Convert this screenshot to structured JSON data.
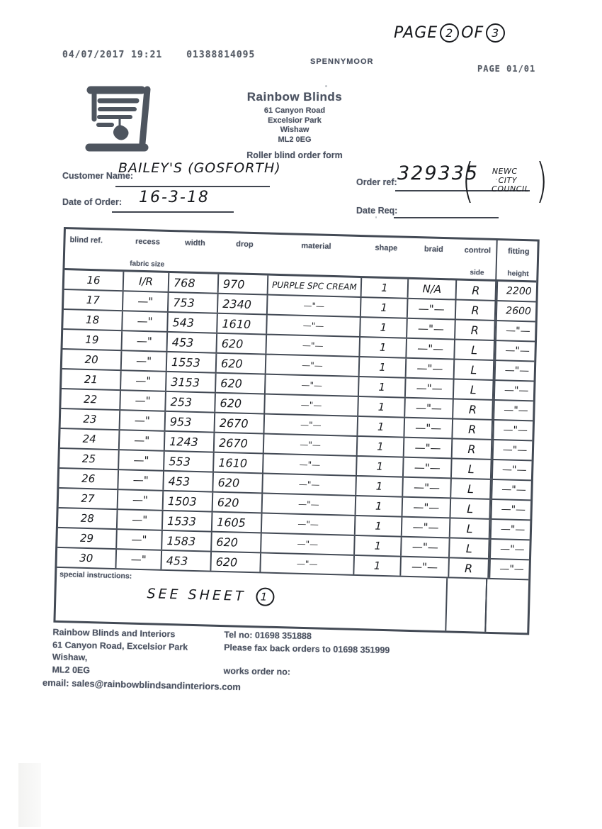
{
  "fax_header": {
    "datetime": "04/07/2017  19:21",
    "fax_number": "01388814095",
    "station_name": "SPENNYMOOR",
    "page_counter": "PAGE  01/01"
  },
  "handwritten_page_note": {
    "word_page": "PAGE",
    "current_page": "2",
    "word_of": "OF",
    "total_pages": "3"
  },
  "company": {
    "name": "Rainbow Blinds",
    "address_line1": "61 Canyon Road",
    "address_line2": "Excelsior Park",
    "address_line3": "Wishaw",
    "postcode": "ML2 0EG",
    "form_title": "Roller blind order form"
  },
  "fields": {
    "customer_name_label": "Customer Name:",
    "customer_name_value": "BAILEY'S (GOSFORTH)",
    "order_ref_label": "Order ref:",
    "order_ref_value": "329335",
    "order_ref_note_open": "(",
    "order_ref_note_line1": "NEWC",
    "order_ref_note_line2": "CITY",
    "order_ref_note_line3": "COUNCIL",
    "order_ref_note_close": ")",
    "date_of_order_label": "Date of Order:",
    "date_of_order_value": "16-3-18",
    "date_req_label": "Date Req:",
    "date_req_value": ""
  },
  "table": {
    "columns": [
      {
        "label": "blind ref.",
        "sub": ""
      },
      {
        "label": "recess",
        "sub": "fabric size"
      },
      {
        "label": "width",
        "sub": ""
      },
      {
        "label": "drop",
        "sub": ""
      },
      {
        "label": "material",
        "sub": ""
      },
      {
        "label": "shape",
        "sub": ""
      },
      {
        "label": "braid",
        "sub": ""
      },
      {
        "label": "control",
        "sub": "side"
      },
      {
        "label": "fitting",
        "sub": "height"
      }
    ],
    "rows": [
      {
        "ref": "16",
        "recess": "I/R",
        "width": "768",
        "drop": "970",
        "material": "PURPLE SPC CREAM",
        "shape": "1",
        "braid": "N/A",
        "control": "R",
        "fitting": "2200"
      },
      {
        "ref": "17",
        "recess": "—\"",
        "width": "753",
        "drop": "2340",
        "material": "—\"—",
        "shape": "1",
        "braid": "—\"—",
        "control": "R",
        "fitting": "2600"
      },
      {
        "ref": "18",
        "recess": "—\"",
        "width": "543",
        "drop": "1610",
        "material": "—\"—",
        "shape": "1",
        "braid": "—\"—",
        "control": "R",
        "fitting": "—\"—"
      },
      {
        "ref": "19",
        "recess": "—\"",
        "width": "453",
        "drop": "620",
        "material": "—\"—",
        "shape": "1",
        "braid": "—\"—",
        "control": "L",
        "fitting": "—\"—"
      },
      {
        "ref": "20",
        "recess": "—\"",
        "width": "1553",
        "drop": "620",
        "material": "—\"—",
        "shape": "1",
        "braid": "—\"—",
        "control": "L",
        "fitting": "—\"—"
      },
      {
        "ref": "21",
        "recess": "—\"",
        "width": "3153",
        "drop": "620",
        "material": "—\"—",
        "shape": "1",
        "braid": "—\"—",
        "control": "L",
        "fitting": "—\"—"
      },
      {
        "ref": "22",
        "recess": "—\"",
        "width": "253",
        "drop": "620",
        "material": "—\"—",
        "shape": "1",
        "braid": "—\"—",
        "control": "R",
        "fitting": "—\"—"
      },
      {
        "ref": "23",
        "recess": "—\"",
        "width": "953",
        "drop": "2670",
        "material": "—\"—",
        "shape": "1",
        "braid": "—\"—",
        "control": "R",
        "fitting": "—\"—"
      },
      {
        "ref": "24",
        "recess": "—\"",
        "width": "1243",
        "drop": "2670",
        "material": "—\"—",
        "shape": "1",
        "braid": "—\"—",
        "control": "R",
        "fitting": "—\"—"
      },
      {
        "ref": "25",
        "recess": "—\"",
        "width": "553",
        "drop": "1610",
        "material": "—\"—",
        "shape": "1",
        "braid": "—\"—",
        "control": "L",
        "fitting": "—\"—"
      },
      {
        "ref": "26",
        "recess": "—\"",
        "width": "453",
        "drop": "620",
        "material": "—\"—",
        "shape": "1",
        "braid": "—\"—",
        "control": "L",
        "fitting": "—\"—"
      },
      {
        "ref": "27",
        "recess": "—\"",
        "width": "1503",
        "drop": "620",
        "material": "—\"—",
        "shape": "1",
        "braid": "—\"—",
        "control": "L",
        "fitting": "—\"—"
      },
      {
        "ref": "28",
        "recess": "—\"",
        "width": "1533",
        "drop": "1605",
        "material": "—\"—",
        "shape": "1",
        "braid": "—\"—",
        "control": "L",
        "fitting": "—\"—"
      },
      {
        "ref": "29",
        "recess": "—\"",
        "width": "1583",
        "drop": "620",
        "material": "—\"—",
        "shape": "1",
        "braid": "—\"—",
        "control": "L",
        "fitting": "—\"—"
      },
      {
        "ref": "30",
        "recess": "—\"",
        "width": "453",
        "drop": "620",
        "material": "—\"—",
        "shape": "1",
        "braid": "—\"—",
        "control": "R",
        "fitting": "—\"—"
      }
    ],
    "special_instructions": {
      "label": "special instructions:",
      "text": "SEE SHEET",
      "number": "1"
    }
  },
  "footer": {
    "company_line": "Rainbow Blinds and Interiors",
    "address_line": "61 Canyon Road, Excelsior Park",
    "town_line": "Wishaw,",
    "postcode_line": "ML2 0EG",
    "tel_line": "Tel no: 01698 351888",
    "fax_line": "Please fax back orders to 01698 351999",
    "works_order_label": "works order no:",
    "email_line": "email: sales@rainbowblindsandinteriors.com"
  },
  "colors": {
    "printed_ink": "#4a5160",
    "table_border": "#434a55",
    "handwriting_ink": "#17191d"
  }
}
